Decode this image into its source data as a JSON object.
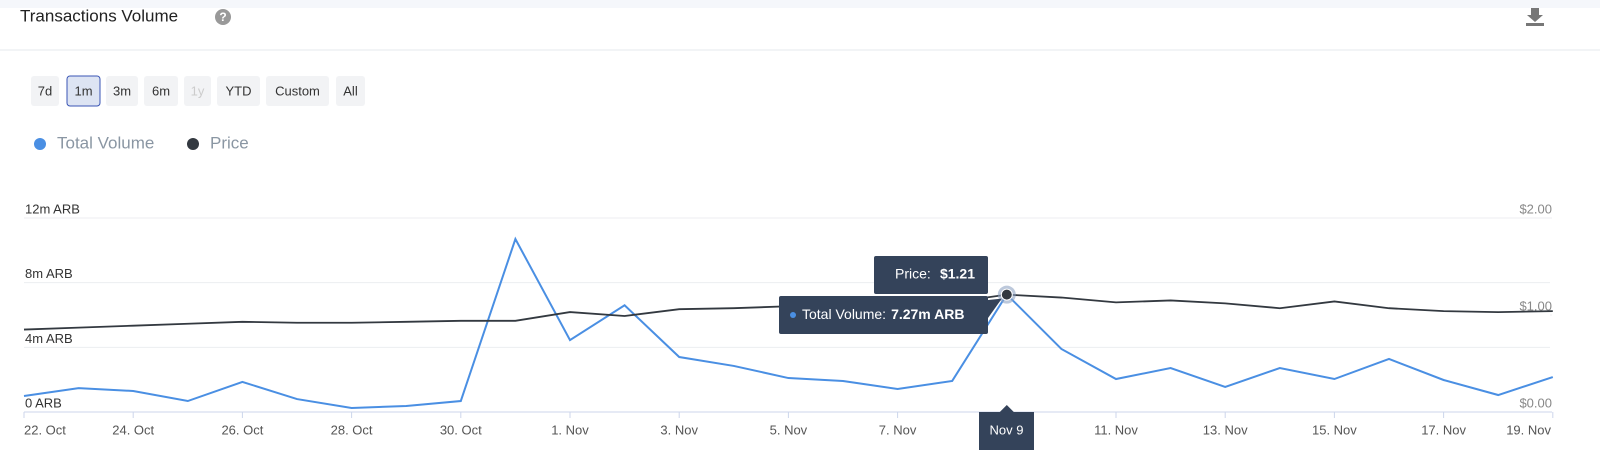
{
  "header": {
    "title": "Transactions Volume"
  },
  "ranges": {
    "buttons": [
      "7d",
      "1m",
      "3m",
      "6m",
      "1y",
      "YTD",
      "Custom",
      "All"
    ],
    "active": 1,
    "disabled": 4
  },
  "chart_data": {
    "type": "line",
    "categories": [
      "22. Oct",
      null,
      "24. Oct",
      null,
      "26. Oct",
      null,
      "28. Oct",
      null,
      "30. Oct",
      null,
      "1. Nov",
      null,
      "3. Nov",
      null,
      "5. Nov",
      null,
      "7. Nov",
      null,
      null,
      null,
      "11. Nov",
      null,
      "13. Nov",
      null,
      "15. Nov",
      null,
      "17. Nov",
      null,
      "19. Nov"
    ],
    "series": [
      {
        "name": "Total Volume",
        "color": "#4a8fe3",
        "values": [
          0.99,
          1.48,
          1.3,
          0.68,
          1.86,
          0.8,
          0.25,
          0.37,
          0.68,
          10.7,
          4.45,
          6.6,
          3.4,
          2.85,
          2.1,
          1.92,
          1.42,
          1.92,
          7.27,
          3.9,
          2.04,
          2.72,
          1.55,
          2.72,
          2.04,
          3.28,
          1.98,
          1.05,
          2.16
        ]
      },
      {
        "name": "Price",
        "color": "#333940",
        "axis": "y2",
        "values": [
          0.85,
          0.87,
          0.89,
          0.91,
          0.93,
          0.92,
          0.92,
          0.93,
          0.94,
          0.94,
          1.03,
          0.99,
          1.06,
          1.07,
          1.09,
          1.1,
          1.11,
          1.13,
          1.21,
          1.18,
          1.13,
          1.15,
          1.12,
          1.07,
          1.14,
          1.07,
          1.04,
          1.03,
          1.04
        ]
      }
    ],
    "ylim": [
      0,
      12
    ],
    "yticks": [
      {
        "value": 0,
        "label": "0 ARB"
      },
      {
        "value": 4,
        "label": "4m ARB"
      },
      {
        "value": 8,
        "label": "8m ARB"
      },
      {
        "value": 12,
        "label": "12m ARB"
      }
    ],
    "y2lim": [
      0,
      2
    ],
    "y2ticks": [
      {
        "value": 0,
        "label": "$0.00"
      },
      {
        "value": 1,
        "label": "$1.00"
      },
      {
        "value": 2,
        "label": "$2.00"
      }
    ],
    "grid": true,
    "tooltip": {
      "index": 18,
      "x_label": "Nov 9",
      "price_name": "Price:",
      "price_label": "$1.21",
      "volume_name": "Total Volume:",
      "volume_label": "7.27m ARB"
    }
  }
}
